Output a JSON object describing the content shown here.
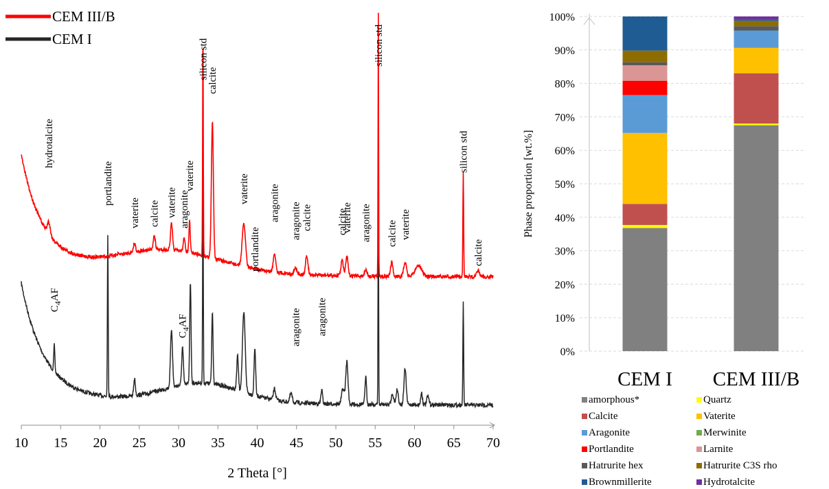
{
  "chart_data": [
    {
      "type": "line",
      "xlabel": "2 Theta [°]",
      "ylabel": "",
      "xlim": [
        10,
        70
      ],
      "xticks": [
        10,
        15,
        20,
        25,
        30,
        35,
        40,
        45,
        50,
        55,
        60,
        65,
        70
      ],
      "grid": false,
      "legend_position": "top-left",
      "series": [
        {
          "name": "CEM III/B",
          "color": "#ff0000",
          "peaks": [
            {
              "x": 13.5,
              "label": "hydrotalcite"
            },
            {
              "x": 24.4,
              "label": "vaterite"
            },
            {
              "x": 26.9,
              "label": "calcite"
            },
            {
              "x": 29.1,
              "label": "vaterite"
            },
            {
              "x": 30.7,
              "label": "aragonite"
            },
            {
              "x": 31.4,
              "label": "vaterite"
            },
            {
              "x": 33.1,
              "label": "silicon std"
            },
            {
              "x": 34.3,
              "label": "calcite"
            },
            {
              "x": 38.3,
              "label": "vaterite"
            },
            {
              "x": 42.2,
              "label": "aragonite"
            },
            {
              "x": 44.9,
              "label": "aragonite"
            },
            {
              "x": 46.3,
              "label": "calcite"
            },
            {
              "x": 50.8,
              "label": "calcite"
            },
            {
              "x": 51.4,
              "label": "vaterite"
            },
            {
              "x": 53.8,
              "label": "aragonite"
            },
            {
              "x": 55.4,
              "label": "silicon std"
            },
            {
              "x": 57.1,
              "label": "calcite"
            },
            {
              "x": 58.8,
              "label": "vaterite"
            },
            {
              "x": 66.2,
              "label": "silicon std"
            },
            {
              "x": 68.1,
              "label": "calcite"
            }
          ]
        },
        {
          "name": "CEM I",
          "color": "#262626",
          "peaks": [
            {
              "x": 14.2,
              "label": "C4AF",
              "label_main": "C",
              "label_sub": "4",
              "label_tail": "AF"
            },
            {
              "x": 21.0,
              "label": "portlandite"
            },
            {
              "x": 24.4,
              "label": ""
            },
            {
              "x": 29.1,
              "label": ""
            },
            {
              "x": 30.5,
              "label": "C4AF",
              "label_main": "C",
              "label_sub": "4",
              "label_tail": "AF"
            },
            {
              "x": 31.5,
              "label": ""
            },
            {
              "x": 33.1,
              "label": ""
            },
            {
              "x": 34.3,
              "label": ""
            },
            {
              "x": 38.3,
              "label": ""
            },
            {
              "x": 39.7,
              "label": "portlandite"
            },
            {
              "x": 44.9,
              "label": "aragonite"
            },
            {
              "x": 48.2,
              "label": "aragonite"
            },
            {
              "x": 51.4,
              "label": ""
            },
            {
              "x": 53.8,
              "label": ""
            },
            {
              "x": 55.4,
              "label": ""
            },
            {
              "x": 58.8,
              "label": ""
            },
            {
              "x": 66.2,
              "label": ""
            }
          ]
        }
      ]
    },
    {
      "type": "bar",
      "stacked": true,
      "ylabel": "Phase proportion [wt.%]",
      "ylim": [
        0,
        100
      ],
      "yticks": [
        "0%",
        "10%",
        "20%",
        "30%",
        "40%",
        "50%",
        "60%",
        "70%",
        "80%",
        "90%",
        "100%"
      ],
      "grid": true,
      "legend_position": "bottom",
      "categories": [
        "CEM I",
        "CEM III/B"
      ],
      "series": [
        {
          "name": "amorphous*",
          "color": "#808080",
          "values": [
            36.8,
            67.5
          ]
        },
        {
          "name": "Quartz",
          "color": "#ffff00",
          "values": [
            0.9,
            0.5
          ]
        },
        {
          "name": "Calcite",
          "color": "#c0504d",
          "values": [
            6.3,
            15.0
          ]
        },
        {
          "name": "Vaterite",
          "color": "#ffc000",
          "values": [
            21.2,
            7.6
          ]
        },
        {
          "name": "Aragonite",
          "color": "#5b9bd5",
          "values": [
            11.3,
            5.2
          ]
        },
        {
          "name": "Merwinite",
          "color": "#70ad47",
          "values": [
            0.0,
            0.0
          ]
        },
        {
          "name": "Portlandite",
          "color": "#ff0000",
          "values": [
            4.3,
            0.0
          ]
        },
        {
          "name": "Larnite",
          "color": "#da9694",
          "values": [
            4.6,
            0.0
          ]
        },
        {
          "name": "Hatrurite hex",
          "color": "#595959",
          "values": [
            0.9,
            1.3
          ]
        },
        {
          "name": "Hatrurite C3S rho",
          "color": "#8e6c00",
          "values": [
            3.5,
            1.6
          ]
        },
        {
          "name": "Brownmillerite",
          "color": "#1f5c93",
          "values": [
            10.2,
            0.3
          ]
        },
        {
          "name": "Hydrotalcite",
          "color": "#7030a0",
          "values": [
            0.0,
            1.0
          ]
        }
      ]
    }
  ]
}
